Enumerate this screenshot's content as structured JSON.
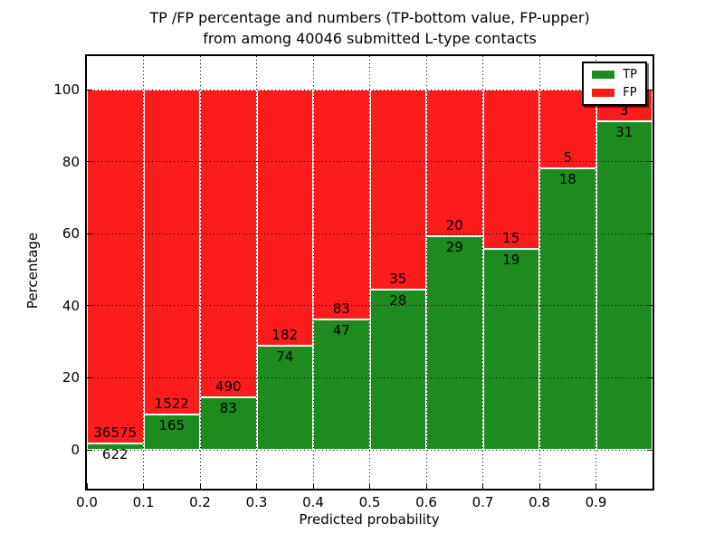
{
  "title": {
    "line1": "TP /FP percentage and numbers (TP-bottom value, FP-upper)",
    "line2": "from among 40046 submitted L-type contacts"
  },
  "axes": {
    "xlabel": "Predicted probability",
    "ylabel": "Percentage",
    "yticks": [
      0,
      20,
      40,
      60,
      80,
      100
    ],
    "xticks": [
      "0.0",
      "0.1",
      "0.2",
      "0.3",
      "0.4",
      "0.5",
      "0.6",
      "0.7",
      "0.8",
      "0.9"
    ]
  },
  "legend": {
    "items": [
      {
        "label": "TP",
        "color": "#1e8b1e"
      },
      {
        "label": "FP",
        "color": "#fb1c1c"
      }
    ]
  },
  "colors": {
    "tp_green": "#1e8b1e",
    "fp_red": "#fb1c1c",
    "grid": "#000000",
    "background": "#ffffff"
  },
  "chart_data": {
    "type": "bar",
    "stacked": true,
    "normalized_to_percent": true,
    "title": "TP /FP percentage and numbers (TP-bottom value, FP-upper) from among 40046 submitted L-type contacts",
    "xlabel": "Predicted probability",
    "ylabel": "Percentage",
    "categories": [
      "0.0-0.1",
      "0.1-0.2",
      "0.2-0.3",
      "0.3-0.4",
      "0.4-0.5",
      "0.5-0.6",
      "0.6-0.7",
      "0.7-0.8",
      "0.8-0.9",
      "0.9-1.0"
    ],
    "bin_left_edges": [
      0.0,
      0.1,
      0.2,
      0.3,
      0.4,
      0.5,
      0.6,
      0.7,
      0.8,
      0.9
    ],
    "series": [
      {
        "name": "TP",
        "counts": [
          622,
          165,
          83,
          74,
          47,
          28,
          29,
          19,
          18,
          31
        ],
        "color": "#1e8b1e"
      },
      {
        "name": "FP",
        "counts": [
          36575,
          1522,
          490,
          182,
          83,
          35,
          20,
          15,
          5,
          3
        ],
        "color": "#fb1c1c"
      }
    ],
    "total_contacts": 40046,
    "bar_edge_color": "#ffffff",
    "ylim": [
      -10.8,
      109.3
    ],
    "xlim": [
      0,
      1
    ],
    "grid": "dotted",
    "legend_position": "upper right"
  }
}
